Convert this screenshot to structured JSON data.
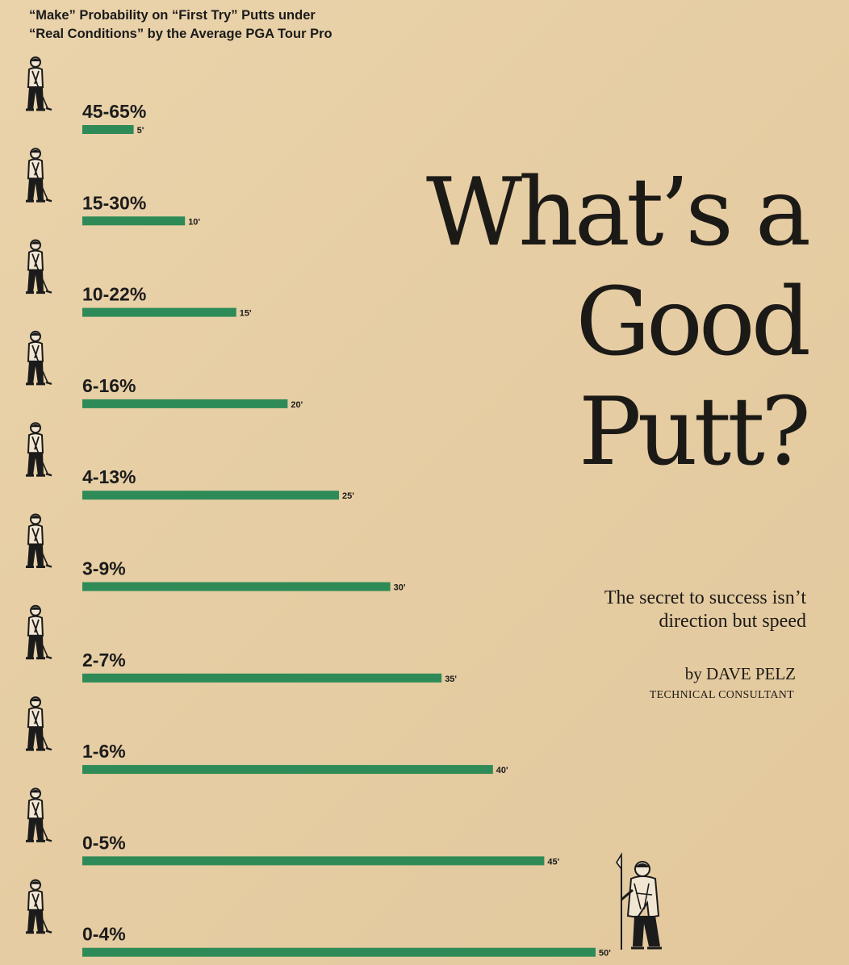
{
  "page": {
    "background": "#e8cfa6",
    "bar_color": "#2e8b57"
  },
  "chart_data": {
    "type": "bar",
    "orientation": "horizontal",
    "title_lines": [
      "“Make” Probability on “First Try” Putts under",
      "“Real Conditions” by the Average PGA Tour Pro"
    ],
    "title": "“Make” Probability on “First Try” Putts under “Real Conditions” by the Average PGA Tour Pro",
    "xlabel": "",
    "ylabel": "",
    "categories": [
      "5'",
      "10'",
      "15'",
      "20'",
      "25'",
      "30'",
      "35'",
      "40'",
      "45'",
      "50'"
    ],
    "values": [
      5,
      10,
      15,
      20,
      25,
      30,
      35,
      40,
      45,
      50
    ],
    "value_unit": "feet",
    "probability_labels": [
      "45-65%",
      "15-30%",
      "10-22%",
      "6-16%",
      "4-13%",
      "3-9%",
      "2-7%",
      "1-6%",
      "0-5%",
      "0-4%"
    ],
    "xlim": [
      0,
      50
    ],
    "grid": false,
    "legend": "none",
    "icons": [
      "golfer-putting-icon",
      "golfer-with-flagstick-icon"
    ]
  },
  "article": {
    "headline_lines": [
      "What’s a",
      "Good",
      "Putt?"
    ],
    "dek_lines": [
      "The secret to success isn’t",
      "direction but speed"
    ],
    "byline": "by DAVE PELZ",
    "role": "TECHNICAL CONSULTANT"
  }
}
